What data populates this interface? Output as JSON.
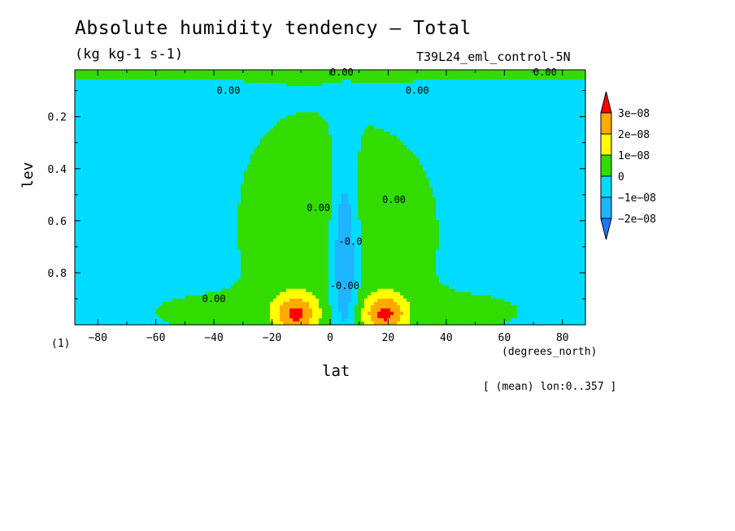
{
  "chart_data": {
    "type": "heatmap",
    "title": "Absolute humidity tendency — Total",
    "subtitle": "(kg kg-1 s-1)",
    "run_label": "T39L24_eml_control-5N",
    "xlabel": "lat",
    "xunits": "(degrees_north)",
    "ylabel": "lev",
    "corner_label": "(1)",
    "annotation": "[ (mean) lon:0..357 ]",
    "xlim": [
      -87.9,
      87.9
    ],
    "ylim": [
      1.0,
      0.02
    ],
    "y_inverted": true,
    "x_ticks": [
      -80,
      -60,
      -40,
      -20,
      0,
      20,
      40,
      60,
      80
    ],
    "x_tick_labels": [
      "−80",
      "−60",
      "−40",
      "−20",
      "0",
      "20",
      "40",
      "60",
      "80"
    ],
    "y_ticks": [
      0.2,
      0.4,
      0.6,
      0.8
    ],
    "y_tick_labels": [
      "0.2",
      "0.4",
      "0.6",
      "0.8"
    ],
    "contour_labels": [
      {
        "text": "0.00",
        "lat": -35,
        "lev": 0.1
      },
      {
        "text": "0.00",
        "lat": 4,
        "lev": 0.03
      },
      {
        "text": "0.00",
        "lat": 30,
        "lev": 0.1
      },
      {
        "text": "0.00",
        "lat": 74,
        "lev": 0.03
      },
      {
        "text": "0.00",
        "lat": -4,
        "lev": 0.55
      },
      {
        "text": "0.00",
        "lat": 22,
        "lev": 0.52
      },
      {
        "text": "0.00",
        "lat": -40,
        "lev": 0.9
      },
      {
        "text": "-0.0",
        "lat": 7,
        "lev": 0.68
      },
      {
        "text": "-0.00",
        "lat": 5,
        "lev": 0.85
      }
    ],
    "colorbar": {
      "levels": [
        -2e-08,
        -1e-08,
        0,
        1e-08,
        2e-08,
        3e-08
      ],
      "labels": [
        "−2e−08",
        "−1e−08",
        "0",
        "1e−08",
        "2e−08",
        "3e−08"
      ],
      "colors": [
        "#1e78ff",
        "#1eb4ff",
        "#00dcff",
        "#32dc00",
        "#ffff00",
        "#ffaa00",
        "#ff0000"
      ]
    },
    "features": [
      {
        "name": "upper-level positive band",
        "lev_range": [
          0.02,
          0.08
        ],
        "sign": "positive"
      },
      {
        "name": "tropical upper drying",
        "lat_range": [
          0,
          10
        ],
        "lev_range": [
          0.3,
          0.95
        ],
        "min": -2e-08
      },
      {
        "name": "southern subtropical moistening",
        "lat_peak": -12,
        "lev_peak": 0.95,
        "max": 3e-08
      },
      {
        "name": "northern subtropical moistening",
        "lat_peak": 19,
        "lev_peak": 0.95,
        "max": 3e-08
      }
    ]
  }
}
